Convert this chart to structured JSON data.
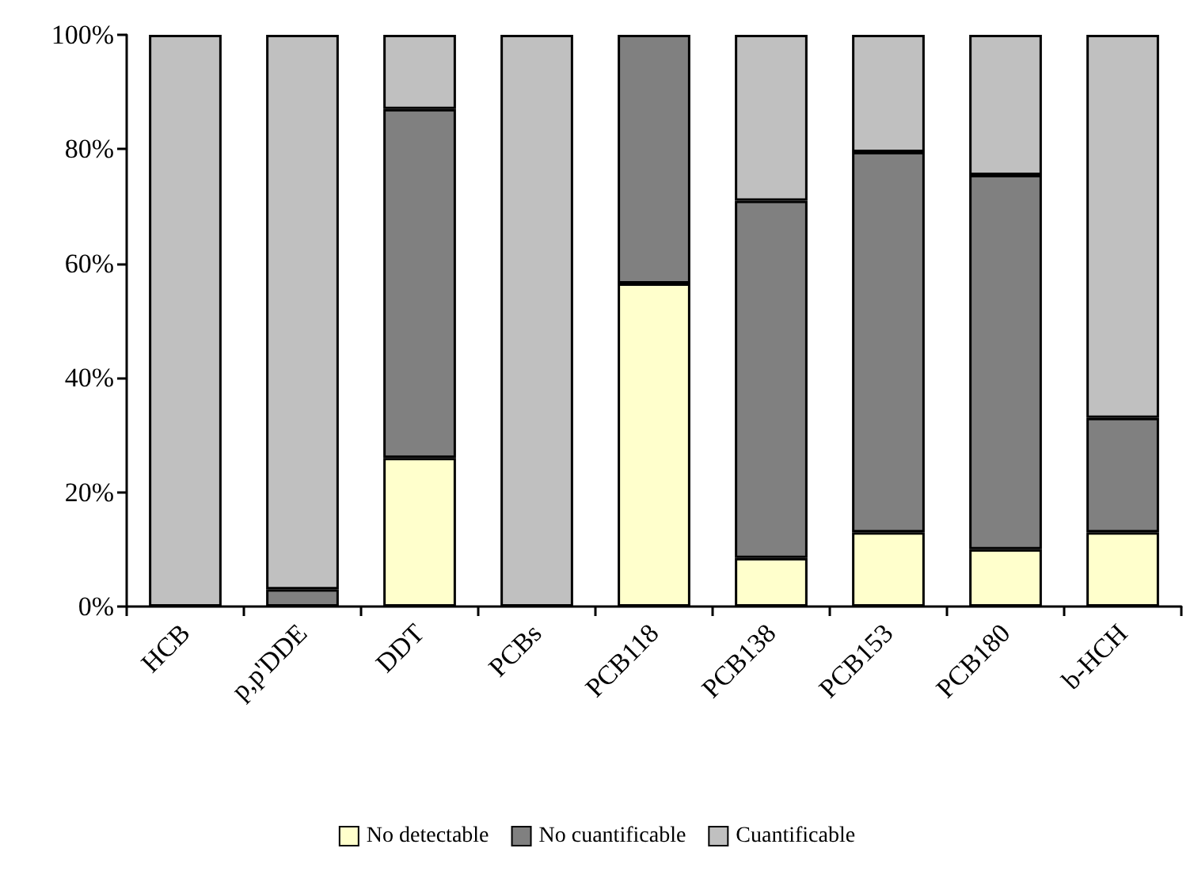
{
  "chart_data": {
    "type": "bar",
    "stacked": true,
    "categories": [
      "HCB",
      "p,p'DDE",
      "DDT",
      "PCBs",
      "PCB118",
      "PCB138",
      "PCB153",
      "PCB180",
      "b-HCH"
    ],
    "series": [
      {
        "name": "No detectable",
        "color": "#ffffcc",
        "values": [
          0,
          0,
          26,
          0,
          56.5,
          8.5,
          13,
          10,
          13
        ]
      },
      {
        "name": "No cuantificable",
        "color": "#808080",
        "values": [
          0,
          3,
          61,
          0,
          43.5,
          62.5,
          66.5,
          65.5,
          20
        ]
      },
      {
        "name": "Cuantificable",
        "color": "#c0c0c0",
        "values": [
          100,
          97,
          13,
          100,
          0,
          29,
          20.5,
          24.5,
          67
        ]
      }
    ],
    "ylim": [
      0,
      100
    ],
    "yticks": [
      {
        "value": 0,
        "label": "0%"
      },
      {
        "value": 20,
        "label": "20%"
      },
      {
        "value": 40,
        "label": "40%"
      },
      {
        "value": 60,
        "label": "60%"
      },
      {
        "value": 80,
        "label": "80%"
      },
      {
        "value": 100,
        "label": "100%"
      }
    ],
    "grid": false,
    "legend": "bottom"
  }
}
